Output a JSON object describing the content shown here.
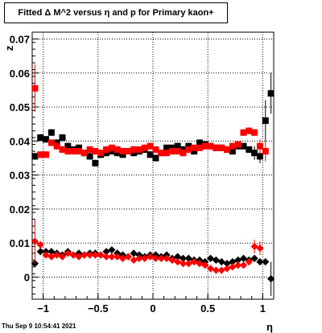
{
  "title": "Fitted Δ M^2 versus η and p for Primary kaon+",
  "timestamp": "Thu Sep  9 10:54:41 2021",
  "chart_data": {
    "type": "scatter",
    "title": "Fitted Δ M^2 versus η and p for Primary kaon+",
    "xlabel": "η",
    "ylabel": "z",
    "xlim": [
      -1.1,
      1.1
    ],
    "ylim": [
      -0.0065,
      0.072
    ],
    "grid": true,
    "x_ticks": [
      -1,
      -0.5,
      0,
      0.5,
      1
    ],
    "x_tick_labels": [
      "−1",
      "−0.5",
      "0",
      "0.5",
      "1"
    ],
    "y_ticks": [
      0,
      0.01,
      0.02,
      0.03,
      0.04,
      0.05,
      0.06,
      0.07
    ],
    "y_tick_labels": [
      "0",
      "0.01",
      "0.02",
      "0.03",
      "0.04",
      "0.05",
      "0.06",
      "0.07"
    ],
    "series": [
      {
        "color": "#000000",
        "marker": "square",
        "x": [
          -1.075,
          -1.025,
          -0.975,
          -0.925,
          -0.875,
          -0.825,
          -0.775,
          -0.725,
          -0.675,
          -0.625,
          -0.575,
          -0.525,
          -0.475,
          -0.425,
          -0.375,
          -0.325,
          -0.275,
          -0.225,
          -0.175,
          -0.125,
          -0.075,
          -0.025,
          0.025,
          0.075,
          0.125,
          0.175,
          0.225,
          0.275,
          0.325,
          0.375,
          0.425,
          0.475,
          0.525,
          0.575,
          0.625,
          0.675,
          0.725,
          0.775,
          0.825,
          0.875,
          0.925,
          0.975,
          1.025,
          1.075
        ],
        "y": [
          0.0355,
          0.041,
          0.0405,
          0.0425,
          0.0395,
          0.041,
          0.0385,
          0.0375,
          0.038,
          0.0365,
          0.0355,
          0.0335,
          0.036,
          0.0365,
          0.037,
          0.0365,
          0.036,
          0.037,
          0.0365,
          0.037,
          0.0375,
          0.036,
          0.035,
          0.0365,
          0.038,
          0.038,
          0.0385,
          0.0375,
          0.0385,
          0.037,
          0.0395,
          0.039,
          0.0385,
          0.038,
          0.038,
          0.0375,
          0.037,
          0.0385,
          0.0385,
          0.0375,
          0.0365,
          0.0355,
          0.046,
          0.054
        ],
        "y_err": [
          0.001,
          0.001,
          0.001,
          0.001,
          0.001,
          0.001,
          0.001,
          0.001,
          0.001,
          0.001,
          0.001,
          0.001,
          0.001,
          0.001,
          0.001,
          0.001,
          0.001,
          0.001,
          0.001,
          0.001,
          0.001,
          0.001,
          0.001,
          0.001,
          0.001,
          0.001,
          0.001,
          0.001,
          0.001,
          0.001,
          0.001,
          0.001,
          0.001,
          0.001,
          0.001,
          0.001,
          0.001,
          0.001,
          0.001,
          0.001,
          0.002,
          0.002,
          0.006,
          0.006
        ]
      },
      {
        "color": "#ff0000",
        "marker": "square",
        "x": [
          -1.075,
          -1.025,
          -0.975,
          -0.925,
          -0.875,
          -0.825,
          -0.775,
          -0.725,
          -0.675,
          -0.625,
          -0.575,
          -0.525,
          -0.475,
          -0.425,
          -0.375,
          -0.325,
          -0.275,
          -0.225,
          -0.175,
          -0.125,
          -0.075,
          -0.025,
          0.025,
          0.075,
          0.125,
          0.175,
          0.225,
          0.275,
          0.325,
          0.375,
          0.425,
          0.475,
          0.525,
          0.575,
          0.625,
          0.675,
          0.725,
          0.775,
          0.825,
          0.875,
          0.925,
          0.975,
          1.025
        ],
        "y": [
          0.0555,
          0.036,
          0.036,
          0.0395,
          0.0385,
          0.0375,
          0.037,
          0.037,
          0.037,
          0.0365,
          0.0375,
          0.037,
          0.0365,
          0.0375,
          0.038,
          0.0375,
          0.037,
          0.037,
          0.0375,
          0.0375,
          0.038,
          0.0385,
          0.0375,
          0.0365,
          0.0365,
          0.037,
          0.037,
          0.0365,
          0.0375,
          0.038,
          0.038,
          0.0385,
          0.0385,
          0.038,
          0.038,
          0.0375,
          0.0385,
          0.039,
          0.0425,
          0.043,
          0.0425,
          0.0385,
          0.037
        ],
        "y_err": [
          0.007,
          0.001,
          0.001,
          0.001,
          0.001,
          0.001,
          0.001,
          0.001,
          0.001,
          0.001,
          0.001,
          0.001,
          0.001,
          0.001,
          0.001,
          0.001,
          0.001,
          0.001,
          0.001,
          0.001,
          0.001,
          0.001,
          0.001,
          0.001,
          0.001,
          0.001,
          0.001,
          0.001,
          0.001,
          0.001,
          0.001,
          0.001,
          0.001,
          0.001,
          0.001,
          0.001,
          0.001,
          0.001,
          0.001,
          0.001,
          0.001,
          0.002,
          0.003
        ]
      },
      {
        "color": "#000000",
        "marker": "diamond",
        "x": [
          -1.075,
          -1.025,
          -0.975,
          -0.925,
          -0.875,
          -0.825,
          -0.775,
          -0.725,
          -0.675,
          -0.625,
          -0.575,
          -0.525,
          -0.475,
          -0.425,
          -0.375,
          -0.325,
          -0.275,
          -0.225,
          -0.175,
          -0.125,
          -0.075,
          -0.025,
          0.025,
          0.075,
          0.125,
          0.175,
          0.225,
          0.275,
          0.325,
          0.375,
          0.425,
          0.475,
          0.525,
          0.575,
          0.625,
          0.675,
          0.725,
          0.775,
          0.825,
          0.875,
          0.925,
          0.975,
          1.025,
          1.075
        ],
        "y": [
          0.004,
          0.0075,
          0.0075,
          0.0075,
          0.007,
          0.0065,
          0.0075,
          0.0065,
          0.007,
          0.0065,
          0.007,
          0.007,
          0.0065,
          0.0075,
          0.008,
          0.007,
          0.0065,
          0.006,
          0.007,
          0.0065,
          0.006,
          0.0065,
          0.0065,
          0.006,
          0.0065,
          0.0055,
          0.006,
          0.0055,
          0.0055,
          0.005,
          0.005,
          0.0045,
          0.0055,
          0.005,
          0.0045,
          0.004,
          0.0045,
          0.005,
          0.0055,
          0.005,
          0.0055,
          0.0045,
          0.0045,
          -0.0005
        ],
        "y_err": [
          0.001,
          0.001,
          0.001,
          0.001,
          0.001,
          0.001,
          0.001,
          0.001,
          0.001,
          0.001,
          0.001,
          0.001,
          0.001,
          0.001,
          0.001,
          0.001,
          0.001,
          0.001,
          0.001,
          0.001,
          0.001,
          0.001,
          0.001,
          0.001,
          0.001,
          0.001,
          0.001,
          0.001,
          0.001,
          0.001,
          0.001,
          0.001,
          0.001,
          0.001,
          0.001,
          0.001,
          0.001,
          0.001,
          0.001,
          0.001,
          0.001,
          0.001,
          0.001,
          0.005
        ]
      },
      {
        "color": "#ff0000",
        "marker": "diamond",
        "x": [
          -1.075,
          -1.025,
          -0.975,
          -0.925,
          -0.875,
          -0.825,
          -0.775,
          -0.725,
          -0.675,
          -0.625,
          -0.575,
          -0.525,
          -0.475,
          -0.425,
          -0.375,
          -0.325,
          -0.275,
          -0.225,
          -0.175,
          -0.125,
          -0.075,
          -0.025,
          0.025,
          0.075,
          0.125,
          0.175,
          0.225,
          0.275,
          0.325,
          0.375,
          0.425,
          0.475,
          0.525,
          0.575,
          0.625,
          0.675,
          0.725,
          0.775,
          0.825,
          0.875,
          0.925,
          0.975
        ],
        "y": [
          0.0105,
          0.0095,
          0.0065,
          0.006,
          0.0065,
          0.006,
          0.007,
          0.0065,
          0.006,
          0.0065,
          0.0065,
          0.0065,
          0.0065,
          0.006,
          0.006,
          0.006,
          0.0055,
          0.006,
          0.005,
          0.0055,
          0.0055,
          0.006,
          0.0055,
          0.0055,
          0.0055,
          0.005,
          0.0045,
          0.004,
          0.004,
          0.0045,
          0.004,
          0.0035,
          0.0025,
          0.002,
          0.002,
          0.0025,
          0.003,
          0.0035,
          0.0035,
          0.0045,
          0.009,
          0.0085
        ],
        "y_err": [
          0.0065,
          0.001,
          0.001,
          0.001,
          0.001,
          0.001,
          0.001,
          0.001,
          0.001,
          0.001,
          0.001,
          0.001,
          0.001,
          0.001,
          0.001,
          0.001,
          0.001,
          0.001,
          0.001,
          0.001,
          0.001,
          0.001,
          0.001,
          0.001,
          0.001,
          0.001,
          0.001,
          0.001,
          0.001,
          0.001,
          0.001,
          0.001,
          0.001,
          0.001,
          0.001,
          0.001,
          0.001,
          0.001,
          0.001,
          0.001,
          0.002,
          0.002
        ]
      }
    ]
  }
}
